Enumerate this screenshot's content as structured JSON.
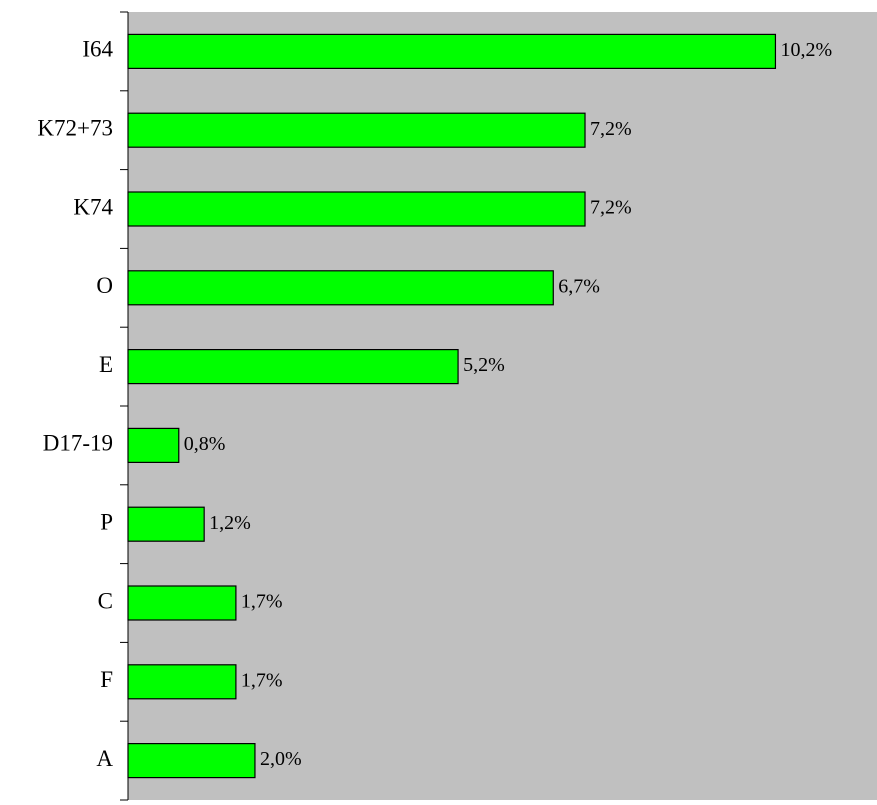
{
  "chart_data": {
    "type": "bar",
    "orientation": "horizontal",
    "categories": [
      "I64",
      "K72+73",
      "K74",
      "O",
      "E",
      "D17-19",
      "P",
      "C",
      "F",
      "A"
    ],
    "values": [
      10.2,
      7.2,
      7.2,
      6.7,
      5.2,
      0.8,
      1.2,
      1.7,
      1.7,
      2.0
    ],
    "value_labels": [
      "10,2%",
      "7,2%",
      "7,2%",
      "6,7%",
      "5,2%",
      "0,8%",
      "1,2%",
      "1,7%",
      "1,7%",
      "2,0%"
    ],
    "color": "#00ff00",
    "background": "#c0c0c0",
    "xlim": [
      0,
      11.8
    ]
  }
}
